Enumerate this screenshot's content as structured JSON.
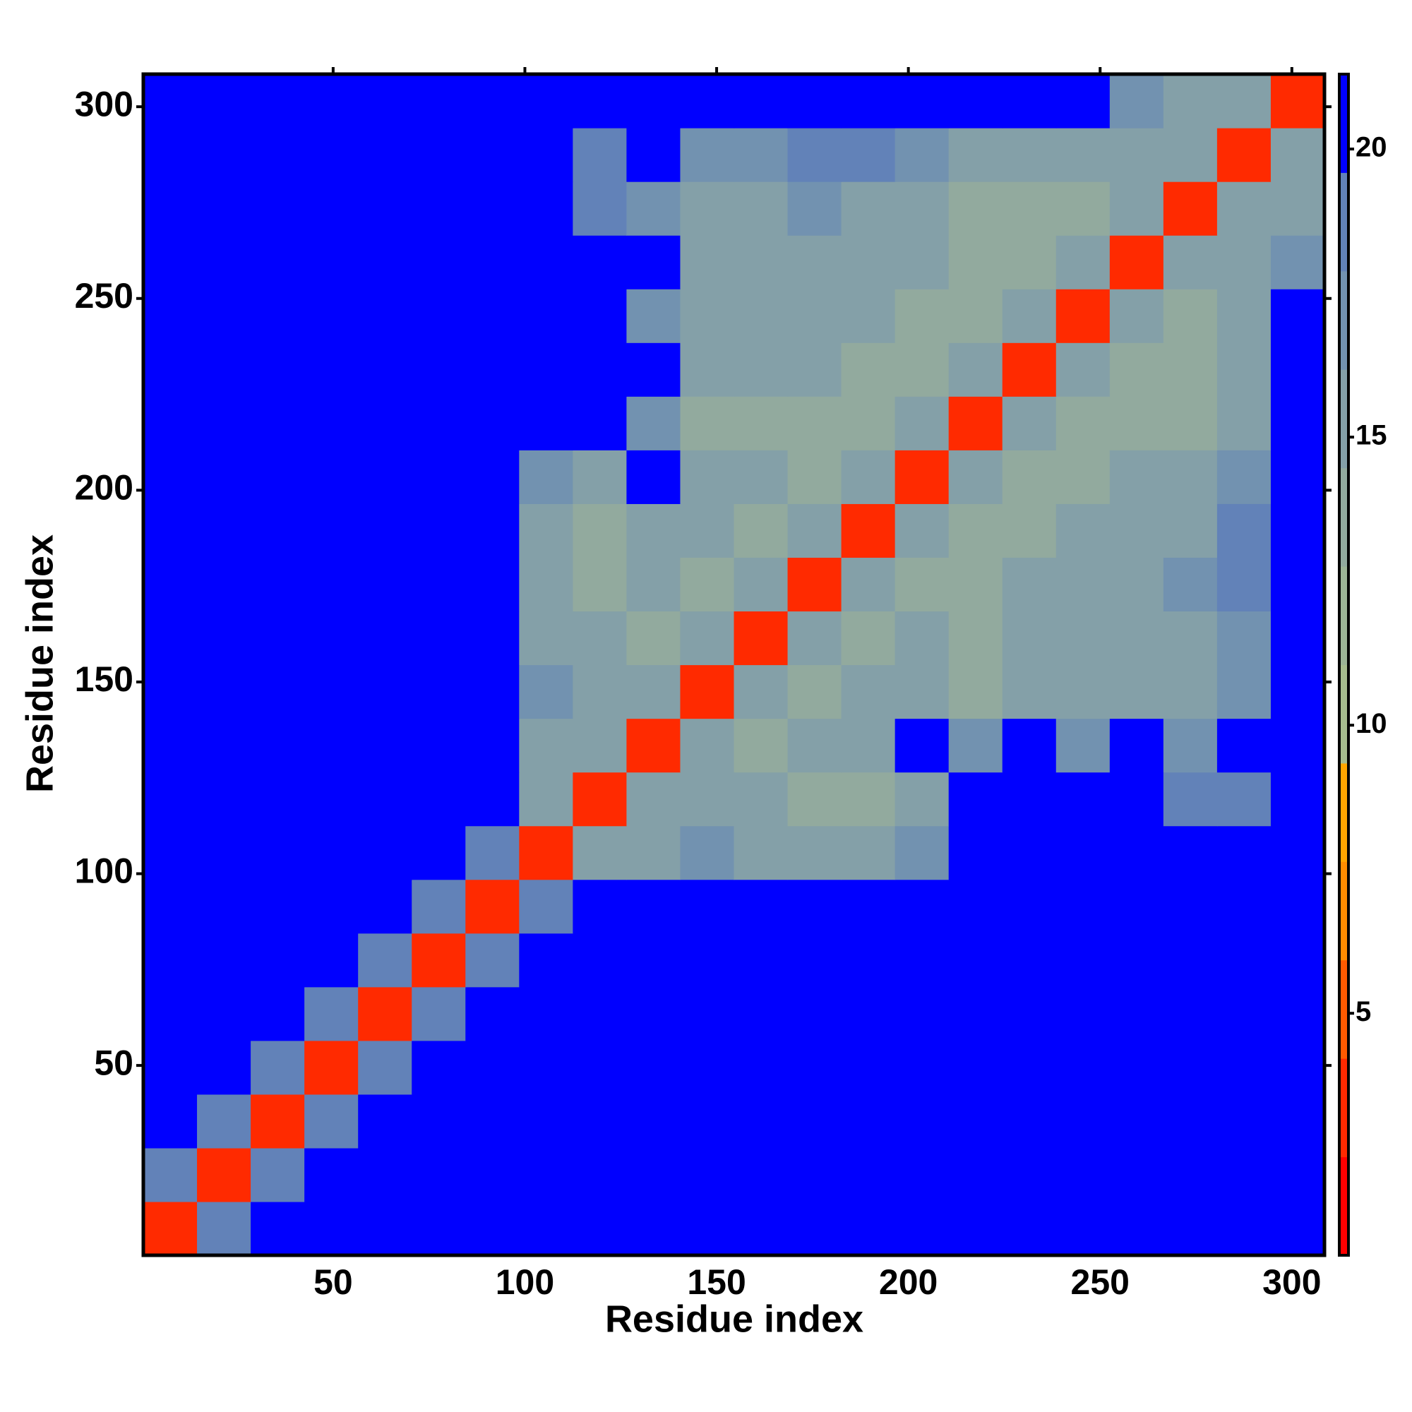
{
  "chart_data": {
    "type": "heatmap",
    "xlabel": "Residue index",
    "ylabel": "Residue index",
    "bins": [
      0.5,
      14.5,
      28.5,
      42.5,
      56.5,
      70.5,
      84.5,
      98.5,
      112.5,
      126.5,
      140.5,
      154.5,
      168.5,
      182.5,
      196.5,
      210.5,
      224.5,
      238.5,
      252.5,
      266.5,
      280.5,
      294.5,
      308.5
    ],
    "z": [
      [
        4,
        19,
        21,
        21,
        21,
        21,
        21,
        21,
        21,
        21,
        21,
        21,
        21,
        21,
        21,
        21,
        21,
        21,
        21,
        21,
        21,
        21
      ],
      [
        19,
        4,
        19,
        21,
        21,
        21,
        21,
        21,
        21,
        21,
        21,
        21,
        21,
        21,
        21,
        21,
        21,
        21,
        21,
        21,
        21,
        21
      ],
      [
        21,
        19,
        4,
        19,
        21,
        21,
        21,
        21,
        21,
        21,
        21,
        21,
        21,
        21,
        21,
        21,
        21,
        21,
        21,
        21,
        21,
        21
      ],
      [
        21,
        21,
        19,
        4,
        19,
        21,
        21,
        21,
        21,
        21,
        21,
        21,
        21,
        21,
        21,
        21,
        21,
        21,
        21,
        21,
        21,
        21
      ],
      [
        21,
        21,
        21,
        19,
        4,
        19,
        21,
        21,
        21,
        21,
        21,
        21,
        21,
        21,
        21,
        21,
        21,
        21,
        21,
        21,
        21,
        21
      ],
      [
        21,
        21,
        21,
        21,
        19,
        4,
        19,
        21,
        21,
        21,
        21,
        21,
        21,
        21,
        21,
        21,
        21,
        21,
        21,
        21,
        21,
        21
      ],
      [
        21,
        21,
        21,
        21,
        21,
        19,
        4,
        18,
        21,
        21,
        21,
        21,
        21,
        21,
        21,
        21,
        21,
        21,
        21,
        21,
        21,
        21
      ],
      [
        21,
        21,
        21,
        21,
        21,
        21,
        18,
        4,
        15,
        16,
        17,
        16,
        16,
        15,
        17,
        21,
        21,
        21,
        21,
        21,
        21,
        21
      ],
      [
        21,
        21,
        21,
        21,
        21,
        21,
        21,
        15,
        4,
        15,
        15,
        15,
        14,
        14,
        16,
        21,
        21,
        21,
        21,
        18,
        18,
        21
      ],
      [
        21,
        21,
        21,
        21,
        21,
        21,
        21,
        16,
        15,
        4,
        15,
        14,
        15,
        16,
        21,
        17,
        21,
        17,
        21,
        17,
        21,
        21
      ],
      [
        21,
        21,
        21,
        21,
        21,
        21,
        21,
        17,
        15,
        15,
        4,
        15,
        14,
        15,
        15,
        14,
        15,
        15,
        16,
        16,
        17,
        21
      ],
      [
        21,
        21,
        21,
        21,
        21,
        21,
        21,
        16,
        15,
        14,
        15,
        4,
        15,
        14,
        15,
        14,
        15,
        15,
        16,
        16,
        17,
        21
      ],
      [
        21,
        21,
        21,
        21,
        21,
        21,
        21,
        16,
        14,
        15,
        14,
        15,
        4,
        15,
        14,
        14,
        15,
        15,
        16,
        17,
        18,
        21
      ],
      [
        21,
        21,
        21,
        21,
        21,
        21,
        21,
        15,
        14,
        16,
        15,
        14,
        15,
        4,
        15,
        14,
        14,
        15,
        15,
        16,
        18,
        21
      ],
      [
        21,
        21,
        21,
        21,
        21,
        21,
        21,
        17,
        16,
        21,
        15,
        15,
        14,
        15,
        4,
        15,
        14,
        14,
        15,
        15,
        17,
        21
      ],
      [
        21,
        21,
        21,
        21,
        21,
        21,
        21,
        21,
        21,
        17,
        14,
        14,
        14,
        14,
        15,
        4,
        15,
        14,
        14,
        14,
        16,
        21
      ],
      [
        21,
        21,
        21,
        21,
        21,
        21,
        21,
        21,
        21,
        21,
        15,
        15,
        15,
        14,
        14,
        15,
        4,
        15,
        14,
        14,
        16,
        21
      ],
      [
        21,
        21,
        21,
        21,
        21,
        21,
        21,
        21,
        21,
        17,
        15,
        15,
        15,
        15,
        14,
        14,
        15,
        4,
        15,
        14,
        15,
        21
      ],
      [
        21,
        21,
        21,
        21,
        21,
        21,
        21,
        21,
        21,
        21,
        16,
        16,
        16,
        15,
        15,
        14,
        14,
        15,
        4,
        15,
        15,
        17
      ],
      [
        21,
        21,
        21,
        21,
        21,
        21,
        21,
        21,
        18,
        17,
        16,
        16,
        17,
        16,
        15,
        14,
        14,
        14,
        15,
        4,
        15,
        16
      ],
      [
        21,
        21,
        21,
        21,
        21,
        21,
        21,
        21,
        18,
        21,
        17,
        17,
        18,
        18,
        17,
        16,
        16,
        15,
        15,
        15,
        4,
        15
      ],
      [
        21,
        21,
        21,
        21,
        21,
        21,
        21,
        21,
        21,
        21,
        21,
        21,
        21,
        21,
        21,
        21,
        21,
        21,
        17,
        16,
        15,
        4
      ]
    ],
    "xlim": [
      0.5,
      308.5
    ],
    "ylim": [
      0.5,
      308.5
    ],
    "xticks": [
      50,
      100,
      150,
      200,
      250,
      300
    ],
    "yticks": [
      50,
      100,
      150,
      200,
      250,
      300
    ],
    "clim": [
      0.8,
      21.3
    ],
    "cticks": [
      5,
      10,
      15,
      20
    ],
    "colors": [
      "#ff0000",
      "#ff2a00",
      "#ff5a00",
      "#ff8c00",
      "#ffa500",
      "#a6bc8e",
      "#9cb496",
      "#92aa9e",
      "#84a0a8",
      "#7292b0",
      "#6282b8",
      "#0000ff"
    ]
  }
}
